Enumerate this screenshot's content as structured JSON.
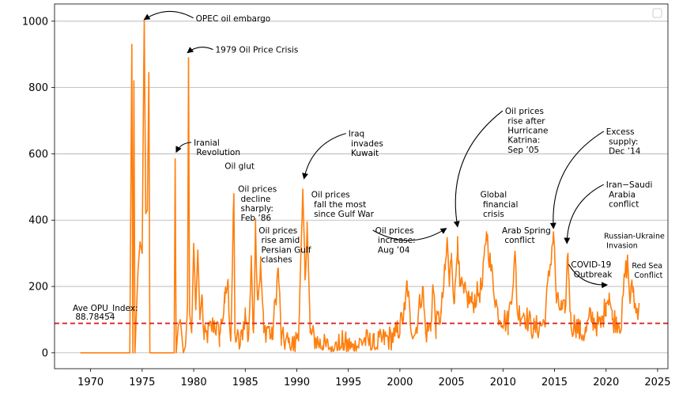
{
  "chart_data": {
    "type": "line",
    "title": "",
    "xlabel": "",
    "ylabel": "",
    "xlim": [
      1966.5,
      2026.0
    ],
    "ylim": [
      -48,
      1052
    ],
    "x_ticks": [
      1970,
      1975,
      1980,
      1985,
      1990,
      1995,
      2000,
      2005,
      2010,
      2015,
      2020,
      2025
    ],
    "y_ticks": [
      0,
      200,
      400,
      600,
      800,
      1000
    ],
    "grid": "horizontal",
    "line_color": "#ff7f0e",
    "reference_line": {
      "value": 88.78454,
      "color": "#d62728",
      "style": "dashed",
      "label": "Ave OPU_Index:\n 88.78454"
    },
    "anchors": [
      [
        1969.0,
        0
      ],
      [
        1973.8,
        0
      ],
      [
        1974.0,
        930
      ],
      [
        1974.1,
        0
      ],
      [
        1974.2,
        820
      ],
      [
        1974.3,
        0
      ],
      [
        1974.6,
        250
      ],
      [
        1974.8,
        335
      ],
      [
        1975.0,
        300
      ],
      [
        1975.2,
        1005
      ],
      [
        1975.35,
        420
      ],
      [
        1975.5,
        430
      ],
      [
        1975.65,
        845
      ],
      [
        1975.75,
        0
      ],
      [
        1978.1,
        0
      ],
      [
        1978.2,
        585
      ],
      [
        1978.3,
        0
      ],
      [
        1978.5,
        80
      ],
      [
        1978.7,
        100
      ],
      [
        1979.0,
        0
      ],
      [
        1979.2,
        20
      ],
      [
        1979.4,
        140
      ],
      [
        1979.5,
        890
      ],
      [
        1979.6,
        120
      ],
      [
        1979.8,
        60
      ],
      [
        1980.0,
        330
      ],
      [
        1980.2,
        130
      ],
      [
        1980.4,
        310
      ],
      [
        1980.6,
        100
      ],
      [
        1980.8,
        175
      ],
      [
        1981.0,
        40
      ],
      [
        1982.0,
        90
      ],
      [
        1982.5,
        50
      ],
      [
        1983.0,
        150
      ],
      [
        1983.3,
        215
      ],
      [
        1983.6,
        40
      ],
      [
        1983.9,
        480
      ],
      [
        1984.0,
        60
      ],
      [
        1984.5,
        20
      ],
      [
        1985.0,
        120
      ],
      [
        1985.3,
        40
      ],
      [
        1985.6,
        270
      ],
      [
        1985.8,
        60
      ],
      [
        1986.0,
        390
      ],
      [
        1986.2,
        160
      ],
      [
        1986.5,
        265
      ],
      [
        1986.8,
        60
      ],
      [
        1987.2,
        80
      ],
      [
        1987.6,
        40
      ],
      [
        1988.2,
        255
      ],
      [
        1988.5,
        40
      ],
      [
        1989.2,
        30
      ],
      [
        1989.8,
        20
      ],
      [
        1990.2,
        80
      ],
      [
        1990.6,
        470
      ],
      [
        1990.8,
        220
      ],
      [
        1991.0,
        395
      ],
      [
        1991.3,
        60
      ],
      [
        1991.8,
        40
      ],
      [
        1992.5,
        20
      ],
      [
        1993.5,
        10
      ],
      [
        1994.5,
        30
      ],
      [
        1995.5,
        10
      ],
      [
        1996.5,
        40
      ],
      [
        1997.5,
        20
      ],
      [
        1998.5,
        40
      ],
      [
        1999.5,
        50
      ],
      [
        2000.0,
        80
      ],
      [
        2000.5,
        130
      ],
      [
        2000.7,
        215
      ],
      [
        2001.0,
        90
      ],
      [
        2001.5,
        60
      ],
      [
        2002.2,
        200
      ],
      [
        2002.5,
        60
      ],
      [
        2003.0,
        80
      ],
      [
        2003.2,
        205
      ],
      [
        2003.5,
        80
      ],
      [
        2004.0,
        120
      ],
      [
        2004.4,
        250
      ],
      [
        2004.6,
        340
      ],
      [
        2004.8,
        200
      ],
      [
        2005.0,
        300
      ],
      [
        2005.3,
        150
      ],
      [
        2005.6,
        350
      ],
      [
        2005.8,
        200
      ],
      [
        2006.2,
        180
      ],
      [
        2007.0,
        150
      ],
      [
        2008.0,
        200
      ],
      [
        2008.4,
        365
      ],
      [
        2008.8,
        260
      ],
      [
        2009.5,
        120
      ],
      [
        2010.5,
        90
      ],
      [
        2011.2,
        290
      ],
      [
        2011.4,
        120
      ],
      [
        2012.0,
        120
      ],
      [
        2013.0,
        70
      ],
      [
        2014.0,
        90
      ],
      [
        2014.9,
        365
      ],
      [
        2015.2,
        150
      ],
      [
        2015.7,
        130
      ],
      [
        2016.0,
        120
      ],
      [
        2016.3,
        300
      ],
      [
        2016.6,
        80
      ],
      [
        2017.0,
        90
      ],
      [
        2017.5,
        60
      ],
      [
        2018.0,
        60
      ],
      [
        2018.5,
        110
      ],
      [
        2019.0,
        90
      ],
      [
        2019.5,
        80
      ],
      [
        2020.0,
        150
      ],
      [
        2020.3,
        180
      ],
      [
        2020.6,
        100
      ],
      [
        2021.0,
        100
      ],
      [
        2021.5,
        90
      ],
      [
        2021.8,
        230
      ],
      [
        2022.1,
        275
      ],
      [
        2022.3,
        160
      ],
      [
        2022.6,
        200
      ],
      [
        2022.9,
        120
      ],
      [
        2023.2,
        150
      ]
    ],
    "noise_amp": 40,
    "annotations": [
      {
        "text": "OPEC oil embargo",
        "x": 1980.2,
        "y": 1000,
        "arrow_to": [
          1975.2,
          1005
        ]
      },
      {
        "text": "1979 Oil Price Crisis",
        "x": 1982.1,
        "y": 905,
        "arrow_to": [
          1979.4,
          905
        ]
      },
      {
        "text": "Iranial\n Revolution",
        "x": 1980.0,
        "y": 625,
        "arrow_to": [
          1978.3,
          605
        ]
      },
      {
        "text": "Oil glut",
        "x": 1983.0,
        "y": 555
      },
      {
        "text": "Oil prices\n decline\n sharply:\n Feb ’86",
        "x": 1984.3,
        "y": 485
      },
      {
        "text": "Oil prices\n rise amid\n Persian Gulf\n clashes",
        "x": 1986.3,
        "y": 360
      },
      {
        "text": "Oil prices\n fall the most\n since Gulf War",
        "x": 1991.4,
        "y": 468
      },
      {
        "text": "Iraq\n invades\n Kuwait",
        "x": 1995.0,
        "y": 652,
        "arrow_to": [
          1990.7,
          525
        ]
      },
      {
        "text": "Oil prices\n increase:\n Aug ’04",
        "x": 1997.6,
        "y": 360,
        "arrow_to": [
          2004.5,
          375
        ]
      },
      {
        "text": "Oil prices\n rise after\n Hurricane\n Katrina:\n Sep ’05",
        "x": 2010.2,
        "y": 720,
        "arrow_to": [
          2005.6,
          380
        ]
      },
      {
        "text": "Global\n financial\n crisis",
        "x": 2007.8,
        "y": 468
      },
      {
        "text": "Arab Spring\n conflict",
        "x": 2009.9,
        "y": 360
      },
      {
        "text": "Excess\n supply:\n Dec ’14",
        "x": 2020.0,
        "y": 658,
        "arrow_to": [
          2014.9,
          375
        ]
      },
      {
        "text": "Iran−Saudi\n Arabia\n conflict",
        "x": 2020.0,
        "y": 498,
        "arrow_to": [
          2016.2,
          330
        ]
      },
      {
        "text": "Russian-Ukraine\n Invasion",
        "x": 2019.8,
        "y": 345,
        "small": true
      },
      {
        "text": "COVID-19\n Outbreak",
        "x": 2016.6,
        "y": 257,
        "arrow_to": [
          2020.1,
          205
        ]
      },
      {
        "text": "Red Sea\n Conflict",
        "x": 2022.5,
        "y": 255,
        "small": true
      }
    ]
  }
}
